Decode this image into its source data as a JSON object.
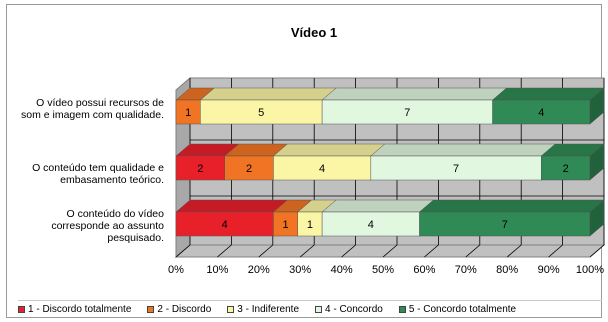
{
  "chart_data": {
    "type": "bar",
    "orientation": "horizontal",
    "stacked": true,
    "percent": true,
    "title": "Vídeo 1",
    "categories": [
      "O vídeo possui recursos de som e imagem com qualidade.",
      "O conteúdo tem qualidade e embasamento teórico.",
      "O conteúdo do vídeo corresponde ao assunto pesquisado."
    ],
    "series": [
      {
        "name": "1 - Discordo totalmente",
        "values": [
          0,
          2,
          4
        ],
        "color": "#e8202a"
      },
      {
        "name": "2 - Discordo",
        "values": [
          1,
          2,
          1
        ],
        "color": "#f07424"
      },
      {
        "name": "3 - Indiferente",
        "values": [
          5,
          4,
          1
        ],
        "color": "#fbf6a6"
      },
      {
        "name": "4 - Concordo",
        "values": [
          7,
          7,
          4
        ],
        "color": "#e1f7e0"
      },
      {
        "name": "5 - Concordo totalmente",
        "values": [
          4,
          2,
          7
        ],
        "color": "#2f8a55"
      }
    ],
    "xticks": [
      "0%",
      "10%",
      "20%",
      "30%",
      "40%",
      "50%",
      "60%",
      "70%",
      "80%",
      "90%",
      "100%"
    ],
    "xlim": [
      0,
      100
    ],
    "grid": true,
    "legend_position": "bottom"
  }
}
